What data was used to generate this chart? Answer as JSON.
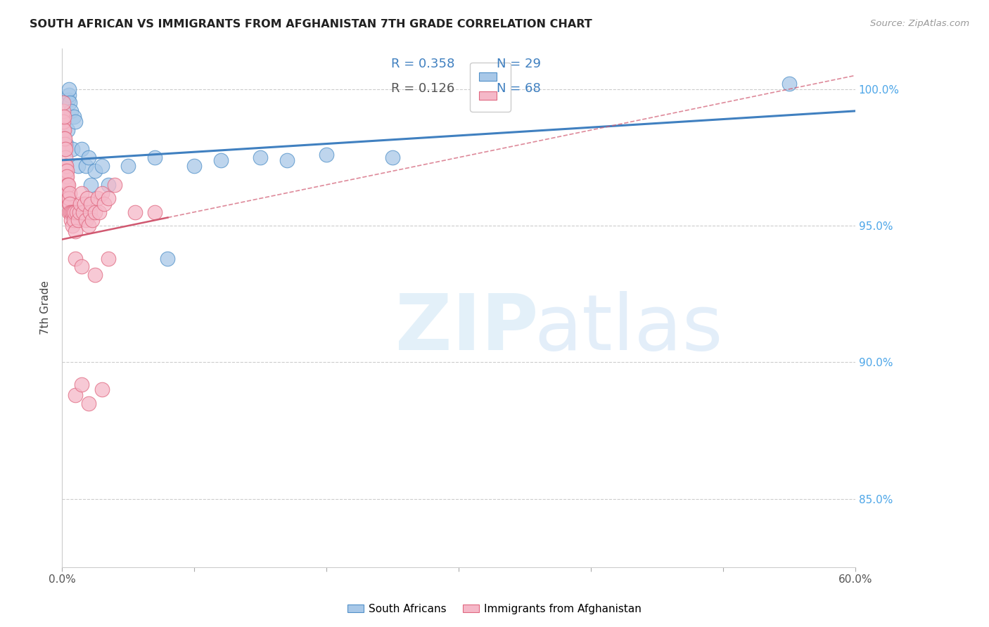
{
  "title": "SOUTH AFRICAN VS IMMIGRANTS FROM AFGHANISTAN 7TH GRADE CORRELATION CHART",
  "source": "Source: ZipAtlas.com",
  "ylabel": "7th Grade",
  "xlim": [
    0.0,
    60.0
  ],
  "ylim": [
    82.5,
    101.5
  ],
  "yticks": [
    85.0,
    90.0,
    95.0,
    100.0
  ],
  "ytick_labels": [
    "85.0%",
    "90.0%",
    "95.0%",
    "100.0%"
  ],
  "legend_r_blue": "R = 0.358",
  "legend_n_blue": "N = 29",
  "legend_r_pink": "R = 0.126",
  "legend_n_pink": "N = 68",
  "blue_fill": "#a8c8e8",
  "pink_fill": "#f5b8c8",
  "blue_edge": "#5090c8",
  "pink_edge": "#e06880",
  "blue_line": "#4080c0",
  "pink_line": "#d05870",
  "blue_x": [
    0.2,
    0.3,
    0.4,
    0.45,
    0.5,
    0.55,
    0.6,
    0.7,
    0.8,
    0.9,
    1.0,
    1.2,
    1.5,
    1.8,
    2.0,
    2.2,
    2.5,
    3.0,
    3.5,
    5.0,
    7.0,
    8.0,
    10.0,
    12.0,
    15.0,
    17.0,
    20.0,
    25.0,
    55.0
  ],
  "blue_y": [
    97.8,
    98.0,
    98.5,
    99.6,
    99.8,
    100.0,
    99.5,
    99.2,
    97.8,
    99.0,
    98.8,
    97.2,
    97.8,
    97.2,
    97.5,
    96.5,
    97.0,
    97.2,
    96.5,
    97.2,
    97.5,
    93.8,
    97.2,
    97.4,
    97.5,
    97.4,
    97.6,
    97.5,
    100.2
  ],
  "pink_x": [
    0.05,
    0.07,
    0.08,
    0.09,
    0.1,
    0.12,
    0.14,
    0.15,
    0.17,
    0.18,
    0.2,
    0.22,
    0.24,
    0.25,
    0.27,
    0.28,
    0.3,
    0.32,
    0.35,
    0.37,
    0.38,
    0.4,
    0.42,
    0.45,
    0.48,
    0.5,
    0.52,
    0.55,
    0.58,
    0.6,
    0.65,
    0.7,
    0.75,
    0.8,
    0.85,
    0.9,
    0.95,
    1.0,
    1.1,
    1.2,
    1.3,
    1.4,
    1.5,
    1.6,
    1.7,
    1.8,
    1.9,
    2.0,
    2.1,
    2.2,
    2.3,
    2.5,
    2.7,
    2.8,
    3.0,
    3.2,
    3.5,
    4.0,
    5.5,
    1.0,
    1.5,
    2.5,
    3.5,
    7.0,
    1.0,
    1.5,
    2.0,
    3.0
  ],
  "pink_y": [
    98.8,
    99.0,
    98.5,
    99.2,
    99.5,
    98.8,
    98.5,
    99.0,
    98.2,
    98.0,
    97.8,
    98.2,
    97.5,
    97.8,
    97.2,
    97.0,
    96.8,
    97.2,
    96.5,
    97.0,
    96.8,
    96.5,
    96.2,
    96.0,
    96.5,
    95.8,
    96.0,
    95.5,
    96.2,
    95.8,
    95.5,
    95.2,
    95.5,
    95.0,
    95.5,
    95.2,
    95.5,
    94.8,
    95.5,
    95.2,
    95.5,
    95.8,
    96.2,
    95.5,
    95.8,
    95.2,
    96.0,
    95.0,
    95.5,
    95.8,
    95.2,
    95.5,
    96.0,
    95.5,
    96.2,
    95.8,
    96.0,
    96.5,
    95.5,
    93.8,
    93.5,
    93.2,
    93.8,
    95.5,
    88.8,
    89.2,
    88.5,
    89.0
  ],
  "blue_trend_x0": 0.0,
  "blue_trend_y0": 97.4,
  "blue_trend_x1": 60.0,
  "blue_trend_y1": 99.2,
  "pink_trend_x0": 0.0,
  "pink_trend_y0": 94.5,
  "pink_trend_x1": 60.0,
  "pink_trend_y1": 100.5
}
